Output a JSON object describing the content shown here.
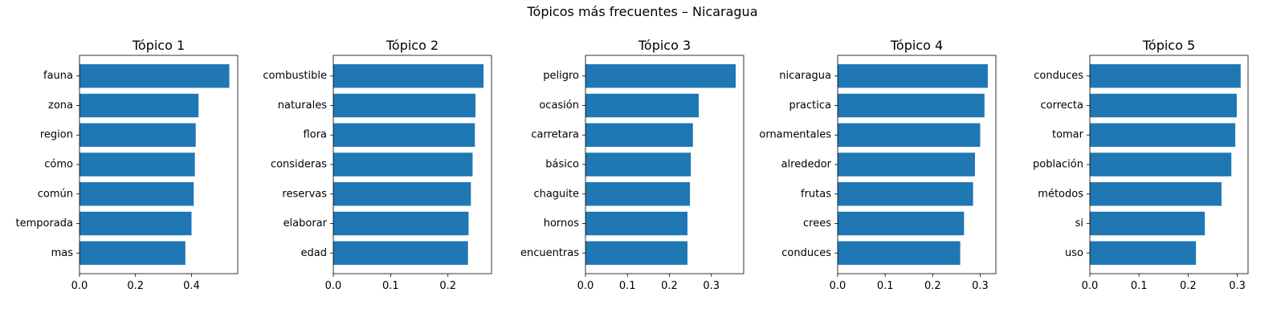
{
  "figure": {
    "suptitle": "Tópicos más frecuentes – Nicaragua",
    "bar_color": "#1f77b4"
  },
  "chart_data": [
    {
      "type": "bar",
      "orientation": "horizontal",
      "title": "Tópico 1",
      "categories": [
        "fauna",
        "zona",
        "region",
        "cómo",
        "común",
        "temporada",
        "mas"
      ],
      "values": [
        0.535,
        0.425,
        0.415,
        0.412,
        0.408,
        0.4,
        0.378
      ],
      "xlim": [
        0,
        0.565
      ],
      "xticks": [
        0.0,
        0.2,
        0.4
      ],
      "xtick_labels": [
        "0.0",
        "0.2",
        "0.4"
      ]
    },
    {
      "type": "bar",
      "orientation": "horizontal",
      "title": "Tópico 2",
      "categories": [
        "combustible",
        "naturales",
        "flora",
        "consideras",
        "reservas",
        "elaborar",
        "edad"
      ],
      "values": [
        0.262,
        0.248,
        0.247,
        0.243,
        0.24,
        0.236,
        0.235
      ],
      "xlim": [
        0,
        0.276
      ],
      "xticks": [
        0.0,
        0.1,
        0.2
      ],
      "xtick_labels": [
        "0.0",
        "0.1",
        "0.2"
      ]
    },
    {
      "type": "bar",
      "orientation": "horizontal",
      "title": "Tópico 3",
      "categories": [
        "peligro",
        "ocasión",
        "carretara",
        "básico",
        "chaguite",
        "hornos",
        "encuentras"
      ],
      "values": [
        0.358,
        0.27,
        0.256,
        0.251,
        0.249,
        0.243,
        0.243
      ],
      "xlim": [
        0,
        0.377
      ],
      "xticks": [
        0.0,
        0.1,
        0.2,
        0.3
      ],
      "xtick_labels": [
        "0.0",
        "0.1",
        "0.2",
        "0.3"
      ]
    },
    {
      "type": "bar",
      "orientation": "horizontal",
      "title": "Tópico 4",
      "categories": [
        "nicaragua",
        "practica",
        "ornamentales",
        "alrededor",
        "frutas",
        "crees",
        "conduces"
      ],
      "values": [
        0.316,
        0.309,
        0.3,
        0.289,
        0.285,
        0.266,
        0.258
      ],
      "xlim": [
        0,
        0.333
      ],
      "xticks": [
        0.0,
        0.1,
        0.2,
        0.3
      ],
      "xtick_labels": [
        "0.0",
        "0.1",
        "0.2",
        "0.3"
      ]
    },
    {
      "type": "bar",
      "orientation": "horizontal",
      "title": "Tópico 5",
      "categories": [
        "conduces",
        "correcta",
        "tomar",
        "población",
        "métodos",
        "si",
        "uso"
      ],
      "values": [
        0.307,
        0.299,
        0.296,
        0.288,
        0.268,
        0.234,
        0.216
      ],
      "xlim": [
        0,
        0.322
      ],
      "xticks": [
        0.0,
        0.1,
        0.2,
        0.3
      ],
      "xtick_labels": [
        "0.0",
        "0.1",
        "0.2",
        "0.3"
      ]
    }
  ]
}
